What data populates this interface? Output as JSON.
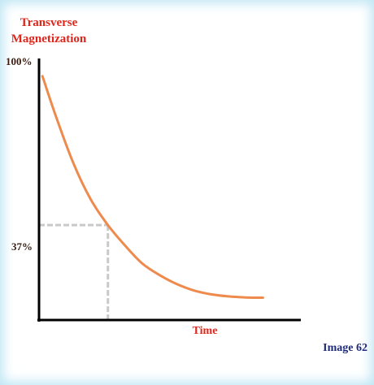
{
  "chart_data": {
    "type": "line",
    "title_lines": [
      "Transverse",
      "Magnetization"
    ],
    "xlabel": "Time",
    "ylabel": "",
    "y_ticks": [
      "100%",
      "37%"
    ],
    "ylim": [
      0,
      100
    ],
    "xlim": [
      0,
      3.8
    ],
    "grid": false,
    "marker": {
      "x": 1,
      "y": 37,
      "style": "dashed"
    },
    "series": [
      {
        "values_x": [
          0.05,
          0.25,
          0.5,
          0.75,
          1.0,
          1.25,
          1.5,
          1.75,
          2.0,
          2.25,
          2.5,
          2.75,
          3.0,
          3.25
        ],
        "values_y": [
          95,
          79,
          61,
          47,
          37,
          29,
          22,
          17.5,
          14,
          11.5,
          10,
          9.2,
          8.8,
          8.7
        ],
        "color": "#ee8a4c"
      }
    ]
  },
  "caption": "Image 62"
}
